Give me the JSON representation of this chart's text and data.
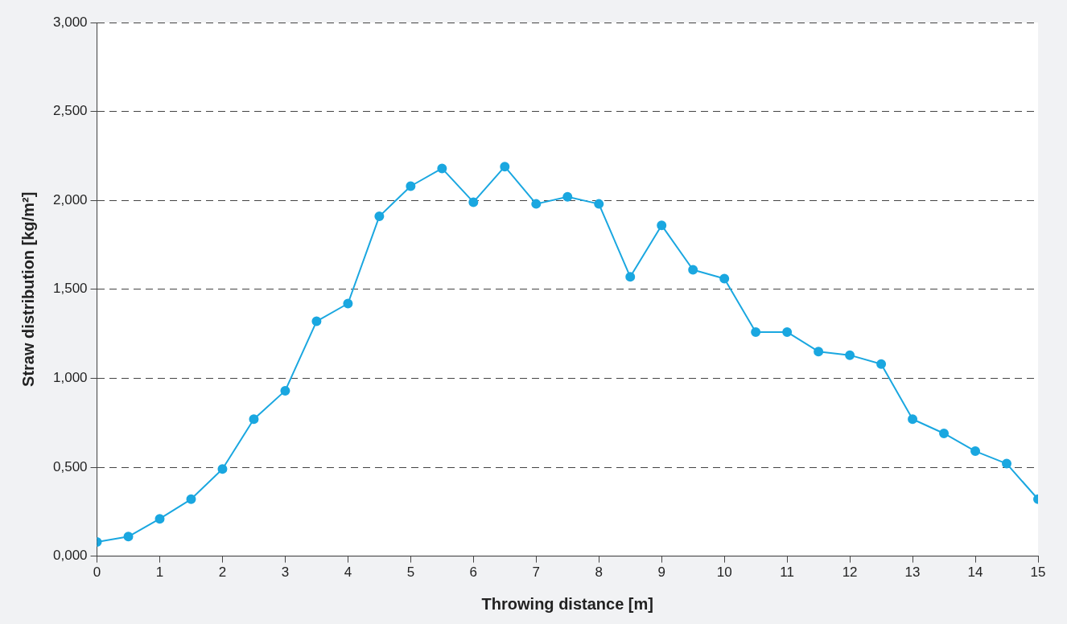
{
  "chart_data": {
    "type": "line",
    "xlabel": "Throwing distance [m]",
    "ylabel": "Straw distribution [kg/m²]",
    "x": [
      0,
      0.5,
      1,
      1.5,
      2,
      2.5,
      3,
      3.5,
      4,
      4.5,
      5,
      5.5,
      6,
      6.5,
      7,
      7.5,
      8,
      8.5,
      9,
      9.5,
      10,
      10.5,
      11,
      11.5,
      12,
      12.5,
      13,
      13.5,
      14,
      14.5,
      15
    ],
    "series": [
      {
        "color": "#1aa7e0",
        "values": [
          0.08,
          0.11,
          0.21,
          0.32,
          0.49,
          0.77,
          0.93,
          1.32,
          1.42,
          1.91,
          2.08,
          2.18,
          1.99,
          2.19,
          1.98,
          2.02,
          1.98,
          1.57,
          1.86,
          1.61,
          1.56,
          1.26,
          1.26,
          1.15,
          1.13,
          1.08,
          0.77,
          0.69,
          0.59,
          0.52,
          0.32
        ]
      }
    ],
    "xlim": [
      0,
      15
    ],
    "xticks": [
      0,
      1,
      2,
      3,
      4,
      5,
      6,
      7,
      8,
      9,
      10,
      11,
      12,
      13,
      14,
      15
    ],
    "ylim": [
      0,
      3
    ],
    "yticks": [
      {
        "value": 0,
        "label": "0,000"
      },
      {
        "value": 0.5,
        "label": "0,500"
      },
      {
        "value": 1,
        "label": "1,000"
      },
      {
        "value": 1.5,
        "label": "1,500"
      },
      {
        "value": 2,
        "label": "2,000"
      },
      {
        "value": 2.5,
        "label": "2,500"
      },
      {
        "value": 3,
        "label": "3,000"
      }
    ],
    "grid": "y",
    "legend": false,
    "marker": "circle",
    "line_style": "solid"
  }
}
